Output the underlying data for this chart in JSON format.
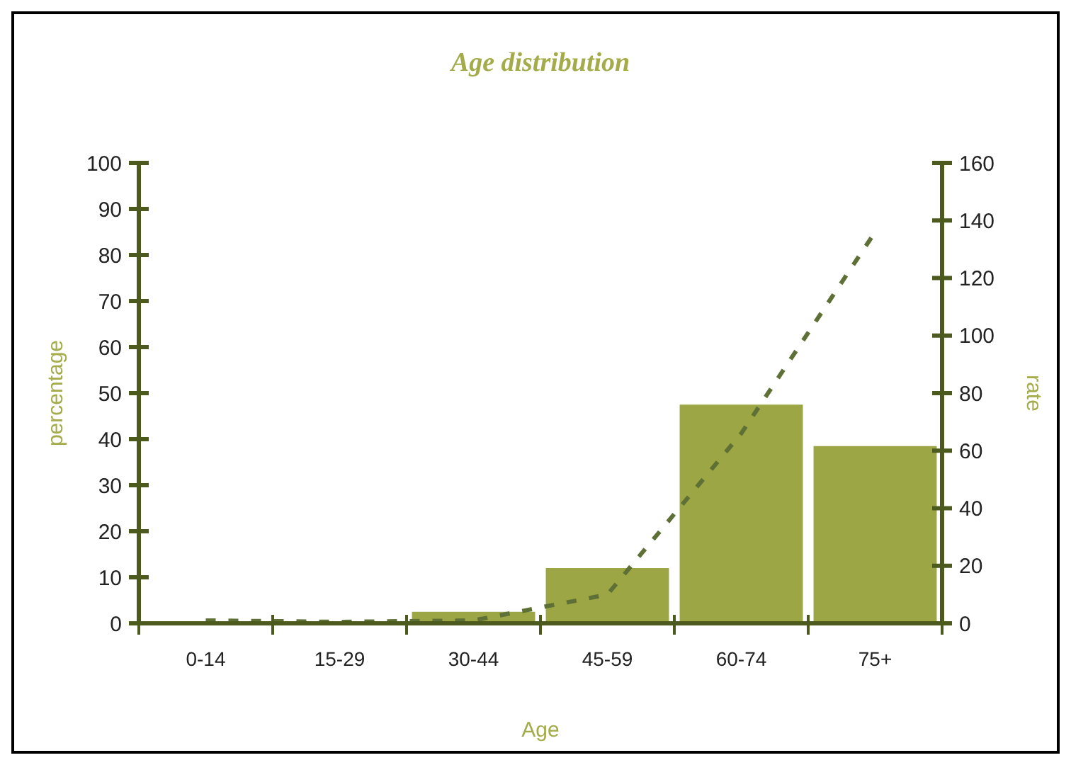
{
  "chart_data": {
    "type": "bar",
    "title": "Age distribution",
    "xlabel": "Age",
    "ylabel": "percentage",
    "y2label": "rate",
    "categories": [
      "0-14",
      "15-29",
      "30-44",
      "45-59",
      "60-74",
      "75+"
    ],
    "series": [
      {
        "color": "#9ca644",
        "values": [
          0.3,
          0.2,
          2.5,
          12,
          47.5,
          38.5
        ]
      },
      {
        "type": "line",
        "axis": "y2",
        "color": "#5e7035",
        "line_style": "dashed",
        "values": [
          1,
          0.5,
          1,
          10,
          66,
          136
        ]
      }
    ],
    "ylim": [
      0,
      100
    ],
    "yticks": [
      0,
      10,
      20,
      30,
      40,
      50,
      60,
      70,
      80,
      90,
      100
    ],
    "y2lim": [
      0,
      160
    ],
    "y2ticks": [
      0,
      20,
      40,
      60,
      80,
      100,
      120,
      140,
      160
    ],
    "grid": false
  }
}
